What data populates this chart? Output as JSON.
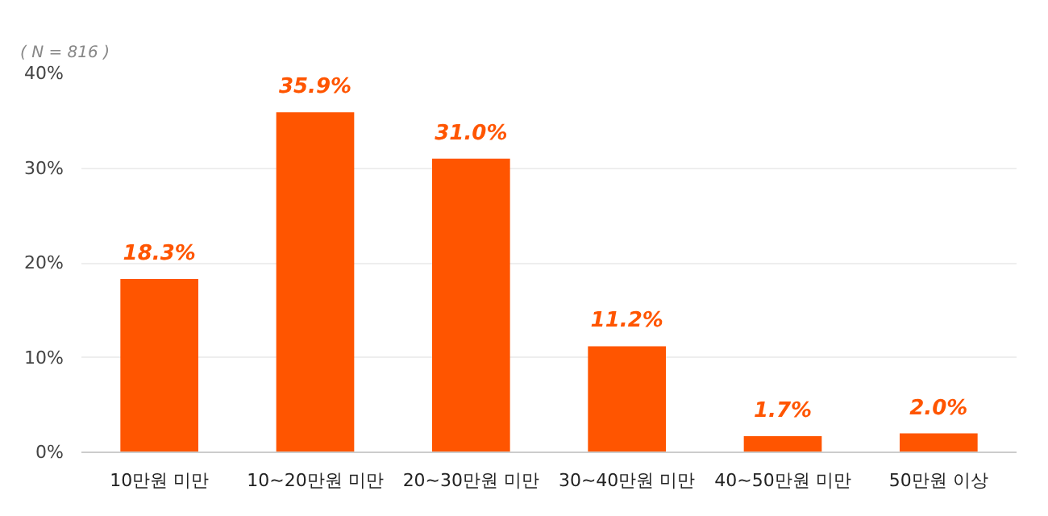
{
  "chart_data": {
    "type": "bar",
    "categories": [
      "10만원 미만",
      "10~20만원 미만",
      "20~30만원 미만",
      "30~40만원 미만",
      "40~50만원 미만",
      "50만원 이상"
    ],
    "values": [
      18.3,
      35.9,
      31.0,
      11.2,
      1.7,
      2.0
    ],
    "value_labels": [
      "18.3%",
      "35.9%",
      "31.0%",
      "11.2%",
      "1.7%",
      "2.0%"
    ],
    "color": "#ff5500",
    "ylim": [
      0,
      40
    ],
    "yticks": [
      {
        "value": 0,
        "label": "0%"
      },
      {
        "value": 10,
        "label": "10%"
      },
      {
        "value": 20,
        "label": "20%"
      },
      {
        "value": 30,
        "label": "30%"
      },
      {
        "value": 40,
        "label": "40%"
      }
    ],
    "grid": "y",
    "annotations": [
      "( N = 816 )"
    ]
  }
}
